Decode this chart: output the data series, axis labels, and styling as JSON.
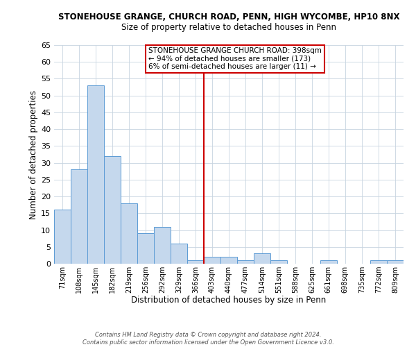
{
  "title": "STONEHOUSE GRANGE, CHURCH ROAD, PENN, HIGH WYCOMBE, HP10 8NX",
  "subtitle": "Size of property relative to detached houses in Penn",
  "xlabel": "Distribution of detached houses by size in Penn",
  "ylabel": "Number of detached properties",
  "bin_labels": [
    "71sqm",
    "108sqm",
    "145sqm",
    "182sqm",
    "219sqm",
    "256sqm",
    "292sqm",
    "329sqm",
    "366sqm",
    "403sqm",
    "440sqm",
    "477sqm",
    "514sqm",
    "551sqm",
    "588sqm",
    "625sqm",
    "661sqm",
    "698sqm",
    "735sqm",
    "772sqm",
    "809sqm"
  ],
  "bin_edges": [
    71,
    108,
    145,
    182,
    219,
    256,
    292,
    329,
    366,
    403,
    440,
    477,
    514,
    551,
    588,
    625,
    661,
    698,
    735,
    772,
    809
  ],
  "bar_heights": [
    16,
    28,
    53,
    32,
    18,
    9,
    11,
    6,
    1,
    2,
    2,
    1,
    3,
    1,
    0,
    0,
    1,
    0,
    0,
    1,
    1
  ],
  "bar_color": "#c5d8ed",
  "bar_edge_color": "#5b9bd5",
  "vline_x": 403,
  "vline_color": "#cc0000",
  "ylim": [
    0,
    65
  ],
  "yticks": [
    0,
    5,
    10,
    15,
    20,
    25,
    30,
    35,
    40,
    45,
    50,
    55,
    60,
    65
  ],
  "annotation_title": "STONEHOUSE GRANGE CHURCH ROAD: 398sqm",
  "annotation_line1": "← 94% of detached houses are smaller (173)",
  "annotation_line2": "6% of semi-detached houses are larger (11) →",
  "annotation_box_edge": "#cc0000",
  "footer_line1": "Contains HM Land Registry data © Crown copyright and database right 2024.",
  "footer_line2": "Contains public sector information licensed under the Open Government Licence v3.0.",
  "bg_color": "#ffffff",
  "grid_color": "#c8d4e0"
}
